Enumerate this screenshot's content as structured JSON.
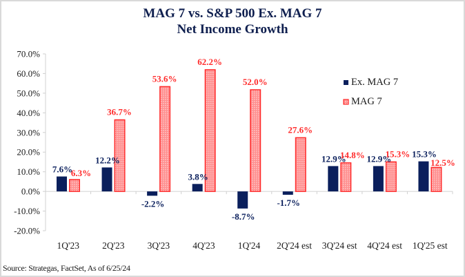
{
  "chart_data": {
    "type": "bar",
    "title": "MAG 7 vs. S&P 500 Ex. MAG 7",
    "subtitle": "Net Income Growth",
    "xlabel": "",
    "ylabel": "",
    "ylim": [
      -20,
      70
    ],
    "ytick_step": 10,
    "yticks": [
      "70.0%",
      "60.0%",
      "50.0%",
      "40.0%",
      "30.0%",
      "20.0%",
      "10.0%",
      "0.0%",
      "-10.0%",
      "-20.0%"
    ],
    "grid": false,
    "legend_position": "right",
    "categories": [
      "1Q'23",
      "2Q'23",
      "3Q'23",
      "4Q'23",
      "1Q'24",
      "2Q'24 est",
      "3Q'24 est",
      "4Q'24 est",
      "1Q'25 est"
    ],
    "series": [
      {
        "name": "Ex. MAG 7",
        "color": "#0a1f5c",
        "values": [
          7.6,
          12.2,
          -2.2,
          3.8,
          -8.7,
          -1.7,
          12.9,
          12.9,
          15.3
        ],
        "labels": [
          "7.6%",
          "12.2%",
          "-2.2%",
          "3.8%",
          "-8.7%",
          "-1.7%",
          "12.9%",
          "12.9%",
          "15.3%"
        ]
      },
      {
        "name": "MAG 7",
        "color": "#ff2b2b",
        "fill": "#ff9a9a",
        "values": [
          6.3,
          36.7,
          53.6,
          62.2,
          52.0,
          27.6,
          14.8,
          15.3,
          12.5
        ],
        "labels": [
          "6.3%",
          "36.7%",
          "53.6%",
          "62.2%",
          "52.0%",
          "27.6%",
          "14.8%",
          "15.3%",
          "12.5%"
        ]
      }
    ]
  },
  "source": "Source: Strategas, FactSet, As of 6/25/24"
}
